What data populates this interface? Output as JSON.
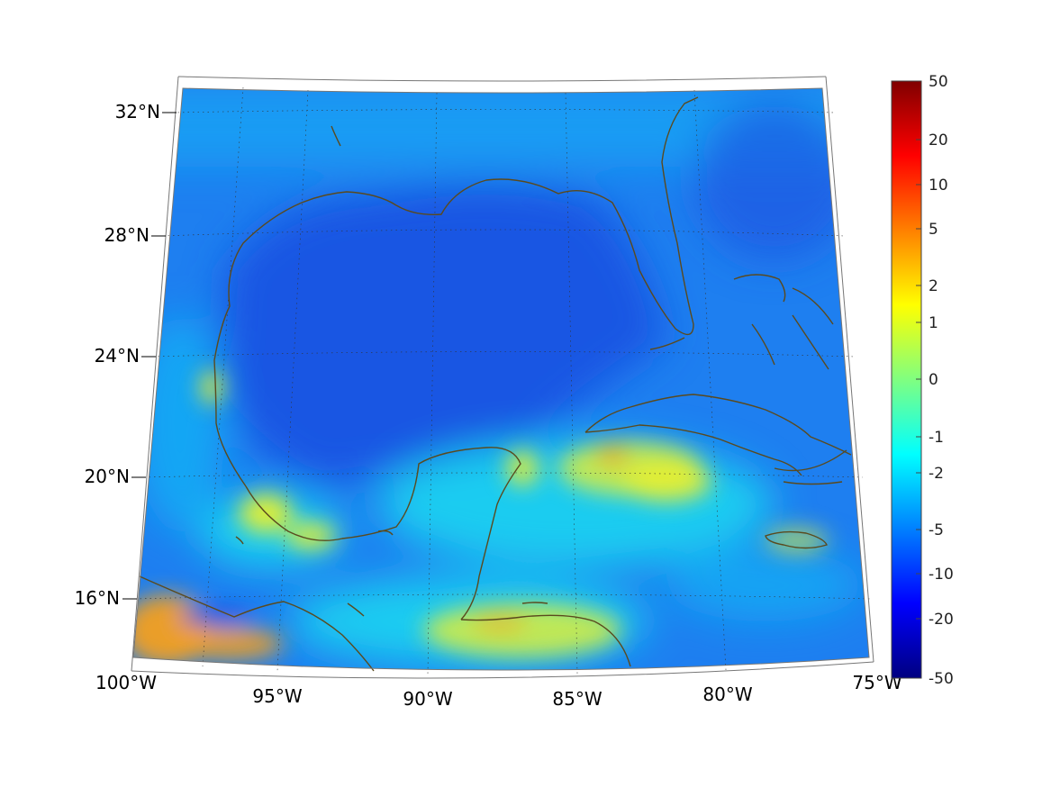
{
  "map": {
    "lat_labels": [
      "32°N",
      "28°N",
      "24°N",
      "20°N",
      "16°N"
    ],
    "lon_labels": [
      "100°W",
      "95°W",
      "90°W",
      "85°W",
      "80°W",
      "75°W"
    ]
  },
  "colorbar": {
    "tick_labels": [
      "50",
      "20",
      "10",
      "5",
      "2",
      "1",
      "0",
      "-1",
      "-2",
      "-5",
      "-10",
      "-20",
      "-50"
    ],
    "colors": [
      "#800000",
      "#ff0000",
      "#ff8000",
      "#ffff00",
      "#80ff80",
      "#00ffff",
      "#0080ff",
      "#0000ff",
      "#000080"
    ]
  },
  "colors": {
    "coastline": "#5a4a1e",
    "field_dark": "#1a4fe0",
    "field_mid": "#1e7ff0",
    "field_light": "#16b4f5",
    "field_cyan": "#18e6f0",
    "field_yellow": "#e8f030",
    "field_orange": "#f5a020"
  }
}
